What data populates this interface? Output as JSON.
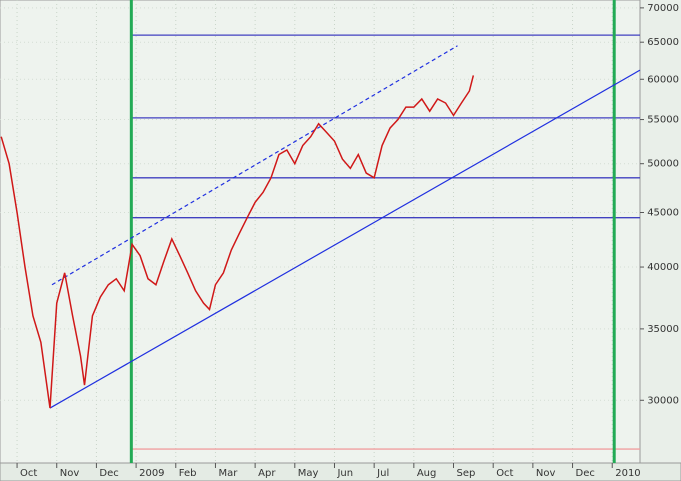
{
  "chart_data": {
    "type": "line",
    "x": [
      -0.4,
      -0.2,
      0,
      0.2,
      0.4,
      0.6,
      0.83,
      1.0,
      1.2,
      1.4,
      1.6,
      1.7,
      1.9,
      2.1,
      2.3,
      2.5,
      2.7,
      2.9,
      3.1,
      3.3,
      3.5,
      3.7,
      3.9,
      4.1,
      4.3,
      4.5,
      4.7,
      4.85,
      5.0,
      5.2,
      5.4,
      5.6,
      5.8,
      6.0,
      6.2,
      6.4,
      6.6,
      6.8,
      7.0,
      7.2,
      7.4,
      7.6,
      7.8,
      8.0,
      8.2,
      8.4,
      8.6,
      8.8,
      9.0,
      9.2,
      9.4,
      9.6,
      9.8,
      10.0,
      10.2,
      10.4,
      10.6,
      10.8,
      11.0,
      11.2,
      11.4,
      11.5
    ],
    "series": [
      {
        "color": "#d01818",
        "values": [
          53000,
          50000,
          45000,
          40000,
          36000,
          34000,
          29500,
          37000,
          39500,
          36000,
          33000,
          31000,
          36000,
          37500,
          38500,
          39000,
          38000,
          42000,
          41000,
          39000,
          38500,
          40500,
          42500,
          41000,
          39500,
          38000,
          37000,
          36500,
          38500,
          39500,
          41500,
          43000,
          44500,
          46000,
          47000,
          48500,
          51000,
          51500,
          50000,
          52000,
          53000,
          54500,
          53500,
          52500,
          50500,
          49500,
          51000,
          49000,
          48500,
          52000,
          54000,
          55000,
          56500,
          56500,
          57500,
          56000,
          57500,
          57000,
          55500,
          57000,
          58500,
          60500
        ]
      }
    ],
    "xlim": [
      -0.43,
      15.7
    ],
    "xticks": [
      {
        "value": 0,
        "label": "Oct"
      },
      {
        "value": 1,
        "label": "Nov"
      },
      {
        "value": 2,
        "label": "Dec"
      },
      {
        "value": 3,
        "label": "2009"
      },
      {
        "value": 4,
        "label": "Feb"
      },
      {
        "value": 5,
        "label": "Mar"
      },
      {
        "value": 6,
        "label": "Apr"
      },
      {
        "value": 7,
        "label": "May"
      },
      {
        "value": 8,
        "label": "Jun"
      },
      {
        "value": 9,
        "label": "Jul"
      },
      {
        "value": 10,
        "label": "Aug"
      },
      {
        "value": 11,
        "label": "Sep"
      },
      {
        "value": 12,
        "label": "Oct"
      },
      {
        "value": 13,
        "label": "Nov"
      },
      {
        "value": 14,
        "label": "Dec"
      },
      {
        "value": 15,
        "label": "2010"
      }
    ],
    "ylim": [
      26200,
      71200
    ],
    "yticks": [
      30000,
      35000,
      40000,
      45000,
      50000,
      55000,
      60000,
      65000,
      70000
    ],
    "log_scale": true,
    "grid": true,
    "hlines": [
      {
        "value": 66000,
        "color": "#4040c0"
      },
      {
        "value": 55200,
        "color": "#4040c0"
      },
      {
        "value": 48500,
        "color": "#4040c0"
      },
      {
        "value": 44500,
        "color": "#4040c0"
      },
      {
        "value": 27000,
        "color": "#f0a0a0"
      }
    ],
    "vlines": [
      {
        "value": 2.88,
        "color": "#22aa55"
      },
      {
        "value": 15.05,
        "color": "#22aa55"
      }
    ],
    "trendlines": [
      {
        "x": [
          0.83,
          15.7
        ],
        "y": [
          29500,
          61200
        ],
        "color": "#2030e0",
        "dashed": false
      },
      {
        "x": [
          0.88,
          11.1
        ],
        "y": [
          38500,
          64500
        ],
        "color": "#2030e0",
        "dashed": true
      }
    ]
  }
}
